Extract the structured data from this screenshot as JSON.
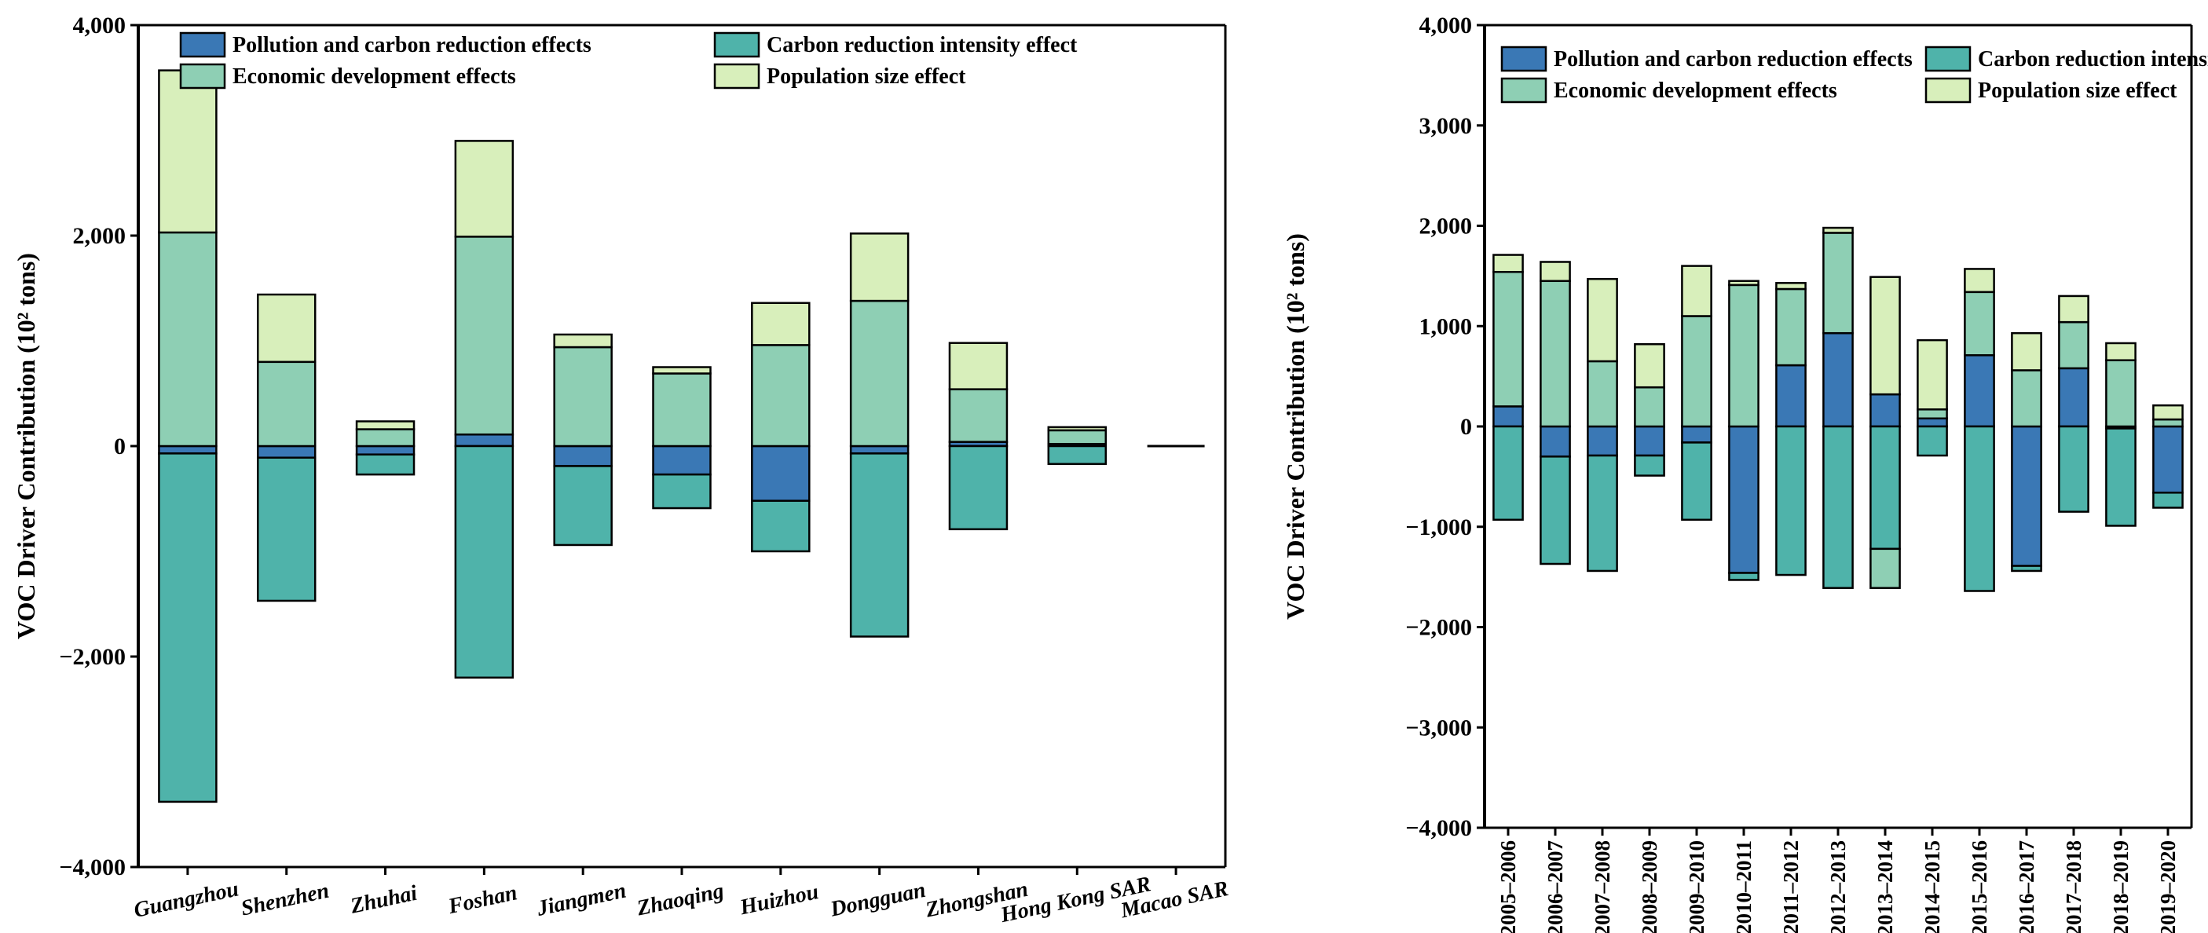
{
  "colors": {
    "pollution": "#3a78b5",
    "carbon": "#4fb3aa",
    "economic": "#8ecfb4",
    "population": "#d8efbb"
  },
  "chart_data": [
    {
      "type": "bar",
      "stacked": true,
      "title": "",
      "xlabel": "",
      "ylabel": "VOC Driver Contribution (10² tons)",
      "ylim": [
        -4000,
        4000
      ],
      "yticks": [
        -4000,
        -2000,
        0,
        2000,
        4000
      ],
      "ytick_labels": [
        "−4,000",
        "−2,000",
        "0",
        "2,000",
        "4,000"
      ],
      "legend_placement": "top-right",
      "categories": [
        "Guangzhou",
        "Shenzhen",
        "Zhuhai",
        "Foshan",
        "Jiangmen",
        "Zhaoqing",
        "Huizhou",
        "Dongguan",
        "Zhongshan",
        "Hong Kong SAR",
        "Macao SAR"
      ],
      "series": [
        {
          "key": "pollution",
          "name": "Pollution and carbon reduction effects",
          "values": [
            -70,
            -110,
            -80,
            110,
            -190,
            -270,
            -520,
            -70,
            40,
            20,
            0
          ]
        },
        {
          "key": "carbon",
          "name": "Carbon reduction intensity effect",
          "values": [
            -3310,
            -1360,
            -190,
            -2200,
            -750,
            -320,
            -480,
            -1740,
            -790,
            -170,
            0
          ]
        },
        {
          "key": "economic",
          "name": "Economic development effects",
          "values": [
            2030,
            800,
            160,
            1880,
            940,
            690,
            960,
            1380,
            500,
            130,
            0
          ]
        },
        {
          "key": "population",
          "name": "Population size effect",
          "values": [
            1540,
            640,
            75,
            910,
            120,
            60,
            400,
            640,
            440,
            30,
            0
          ]
        }
      ]
    },
    {
      "type": "bar",
      "stacked": true,
      "title": "",
      "xlabel": "",
      "ylabel": "VOC Driver Contribution (10² tons)",
      "ylim": [
        -4000,
        4000
      ],
      "yticks": [
        -4000,
        -3000,
        -2000,
        -1000,
        0,
        1000,
        2000,
        3000,
        4000
      ],
      "ytick_labels": [
        "−4,000",
        "−3,000",
        "−2,000",
        "−1,000",
        "0",
        "1,000",
        "2,000",
        "3,000",
        "4,000"
      ],
      "legend_placement": "top",
      "categories": [
        "2005–2006",
        "2006–2007",
        "2007–2008",
        "2008–2009",
        "2009–2010",
        "2010–2011",
        "2011–2012",
        "2012–2013",
        "2013–2014",
        "2014–2015",
        "2015–2016",
        "2016–2017",
        "2017–2018",
        "2018–2019",
        "2019–2020"
      ],
      "series": [
        {
          "key": "pollution",
          "name": "Pollution and carbon reduction effects",
          "values": [
            200,
            -300,
            -290,
            -290,
            -160,
            -1460,
            610,
            930,
            320,
            80,
            710,
            -1390,
            580,
            -20,
            -660
          ]
        },
        {
          "key": "carbon",
          "name": "Carbon reduction intensity effect",
          "values": [
            -930,
            -1070,
            -1150,
            -200,
            -770,
            -70,
            -1480,
            -1610,
            -1220,
            -290,
            -1640,
            -50,
            -850,
            -970,
            -150
          ]
        },
        {
          "key": "economic",
          "name": "Economic development effects",
          "values": [
            1340,
            1450,
            650,
            390,
            1100,
            1410,
            760,
            1000,
            -390,
            90,
            630,
            560,
            460,
            660,
            70
          ]
        },
        {
          "key": "population",
          "name": "Population size effect",
          "values": [
            170,
            190,
            820,
            430,
            500,
            40,
            60,
            50,
            1170,
            690,
            230,
            370,
            260,
            170,
            140
          ]
        }
      ]
    }
  ]
}
